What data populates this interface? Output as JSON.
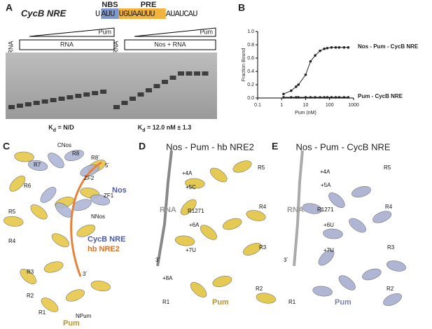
{
  "panel_a": {
    "letter": "A",
    "construct": "CycB NRE",
    "sequence_parts": [
      "U",
      "AUU",
      "UGUAAUUU",
      "AUAUCAU"
    ],
    "nbs": "NBS",
    "pre": "PRE",
    "gels": [
      {
        "lane": "RNA",
        "box": "RNA",
        "titrant": "Pum",
        "kd_k": "K",
        "kd_d": "d",
        "kd_rest": " = N/D"
      },
      {
        "lane": "RNA",
        "box": "Nos + RNA",
        "titrant": "Pum",
        "kd_k": "K",
        "kd_d": "d",
        "kd_rest": " = 12.0 nM ± 1.3"
      }
    ]
  },
  "chart_data": {
    "type": "line",
    "letter": "B",
    "x_label": "Pum (nM)",
    "y_label": "Fraction Bound",
    "log_x": true,
    "xlim": [
      0.1,
      1000
    ],
    "xticks": [
      0.1,
      1,
      10,
      100,
      1000
    ],
    "ylim": [
      0,
      1
    ],
    "yticks": [
      {
        "value": 0,
        "label": "0.0"
      },
      0.2,
      0.4,
      0.6,
      0.8,
      {
        "value": 1,
        "label": "1.0"
      }
    ],
    "series": [
      {
        "name": "Nos - Pum - CycB NRE",
        "color": "#222222",
        "x": [
          1.2,
          2.5,
          4,
          5,
          10,
          16,
          25,
          40,
          60,
          80,
          120,
          180,
          250,
          400,
          600
        ],
        "values": [
          0.06,
          0.11,
          0.17,
          0.2,
          0.35,
          0.55,
          0.64,
          0.71,
          0.74,
          0.75,
          0.76,
          0.76,
          0.76,
          0.76,
          0.76
        ]
      },
      {
        "name": "Pum - CycB NRE",
        "color": "#222222",
        "x": [
          1.2,
          2.5,
          4,
          5,
          10,
          16,
          25,
          40,
          60,
          80,
          120,
          180,
          250,
          400,
          600
        ],
        "values": [
          0.01,
          0.01,
          0.01,
          0.01,
          0.01,
          0.01,
          0.01,
          0.01,
          0.01,
          0.01,
          0.01,
          0.01,
          0.01,
          0.01,
          0.01
        ]
      }
    ]
  },
  "panel_c": {
    "letter": "C",
    "labels": [
      "CNos",
      "R8",
      "R7",
      "R8´",
      "5´",
      "ZF2",
      "ZF1",
      "Nos",
      "R6",
      "R5",
      "R4",
      "NNos",
      "CycB NRE",
      "hb NRE2",
      "R3",
      "3´",
      "R2",
      "R1",
      "NPum",
      "Pum"
    ]
  },
  "panel_d": {
    "letter": "D",
    "title": "Nos - Pum - hb NRE2",
    "labels": [
      "+4A",
      "R5",
      "+5C",
      "RNA",
      "R1271",
      "R4",
      "+6A",
      "3´",
      "+7U",
      "R3",
      "+8A",
      "R2",
      "R1",
      "Pum"
    ]
  },
  "panel_e": {
    "letter": "E",
    "title": "Nos - Pum - CycB NRE",
    "labels": [
      "+4A",
      "R5",
      "+5A",
      "RNA",
      "R1271",
      "R4",
      "+6U",
      "3´",
      "+7U",
      "R3",
      "R2",
      "R1",
      "Pum"
    ]
  }
}
